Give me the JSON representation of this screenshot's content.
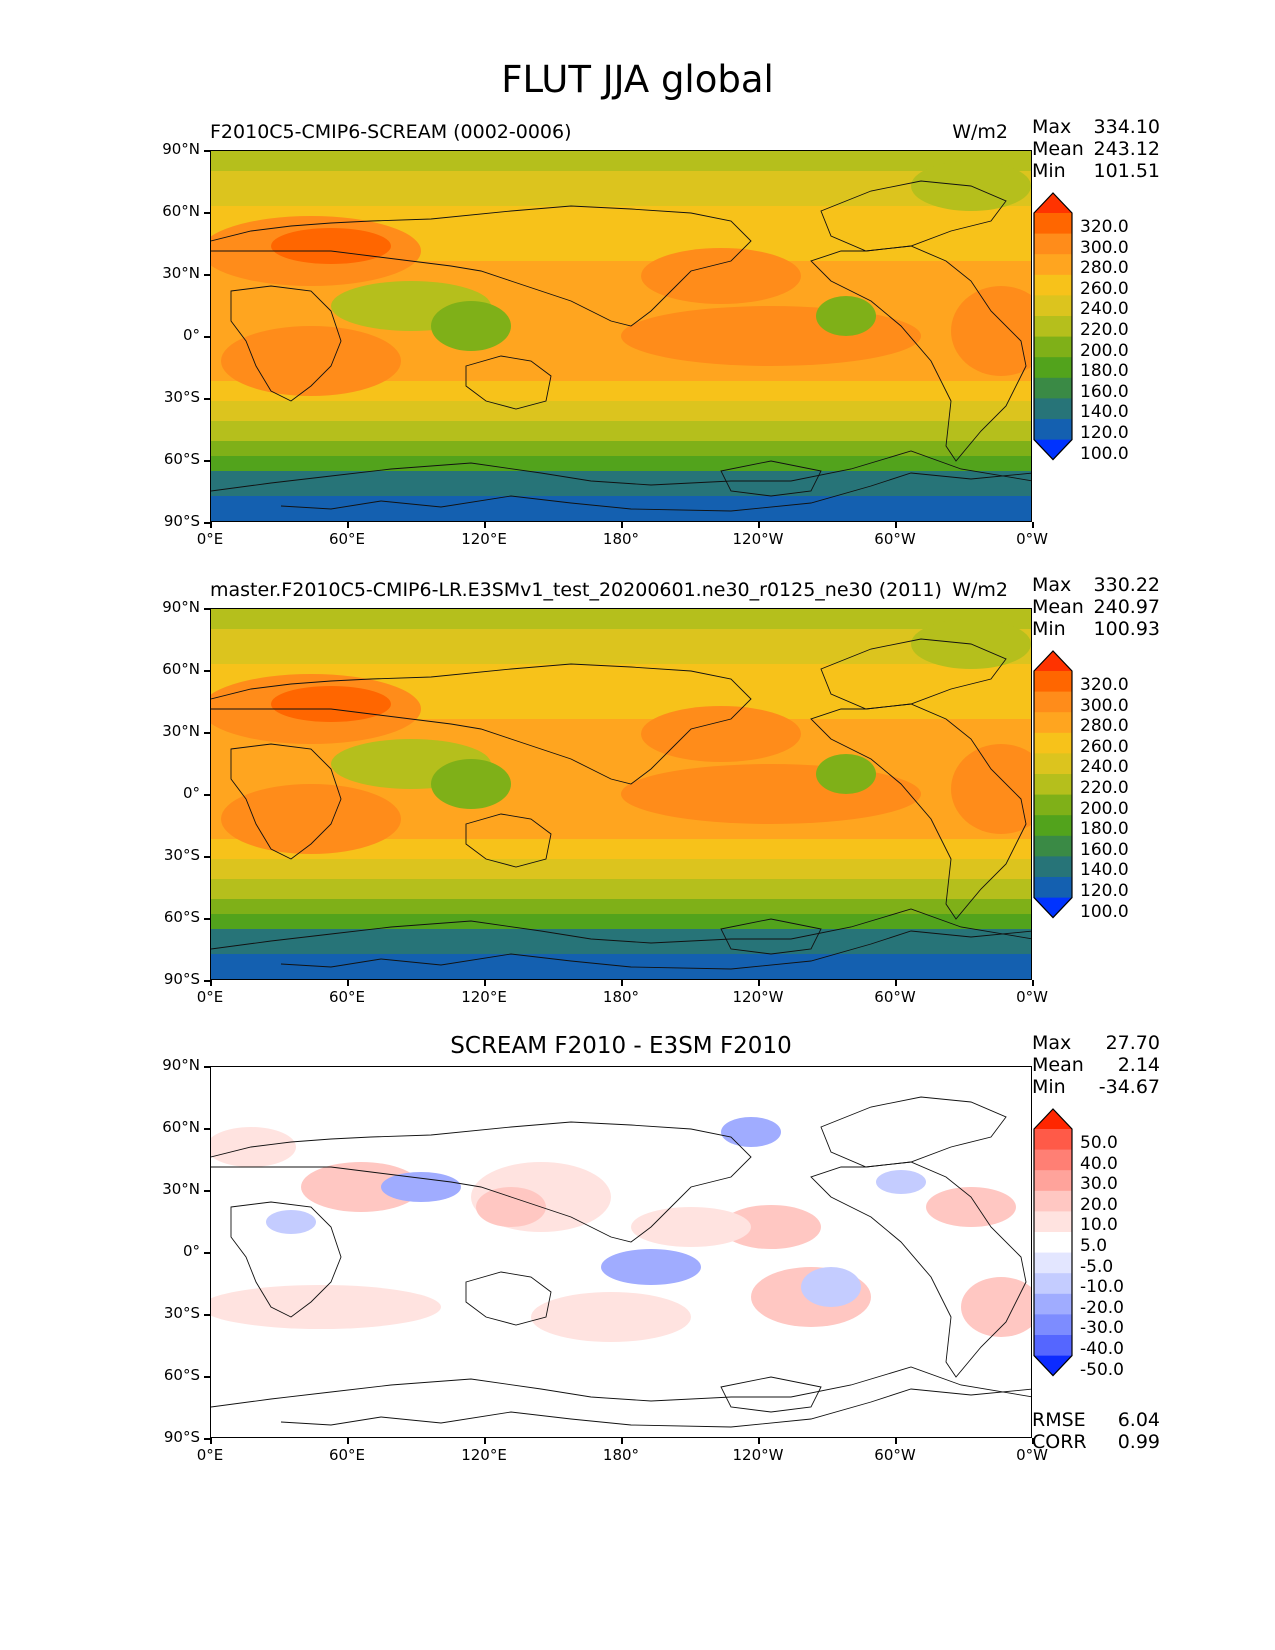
{
  "figure_title": "FLUT JJA global",
  "panels": [
    {
      "left_title": "F2010C5-CMIP6-SCREAM (0002-0006)",
      "units": "W/m2",
      "stats": {
        "Max": "334.10",
        "Mean": "243.12",
        "Min": "101.51"
      }
    },
    {
      "left_title": "master.F2010C5-CMIP6-LR.E3SMv1_test_20200601.ne30_r0125_ne30 (2011)",
      "units": "W/m2",
      "stats": {
        "Max": "330.22",
        "Mean": "240.97",
        "Min": "100.93"
      }
    },
    {
      "center_title": "SCREAM F2010 - E3SM F2010",
      "stats": {
        "Max": "27.70",
        "Mean": "2.14",
        "Min": "-34.67"
      },
      "metrics": {
        "RMSE": "6.04",
        "CORR": "0.99"
      }
    }
  ],
  "lat_ticks": [
    "90°N",
    "60°N",
    "30°N",
    "0°",
    "30°S",
    "60°S",
    "90°S"
  ],
  "lon_ticks": [
    "0°E",
    "60°E",
    "120°E",
    "180°",
    "120°W",
    "60°W",
    "0°W"
  ],
  "colorbar_main": {
    "labels": [
      "320.0",
      "300.0",
      "280.0",
      "260.0",
      "240.0",
      "220.0",
      "200.0",
      "180.0",
      "160.0",
      "140.0",
      "120.0",
      "100.0"
    ],
    "colors": [
      "#ff3300",
      "#ff6600",
      "#ff8c1a",
      "#ffa51f",
      "#f7c21a",
      "#dcc41e",
      "#b5bf1c",
      "#7fb018",
      "#52a31c",
      "#3a8a45",
      "#277478",
      "#1460b0",
      "#0033ff"
    ]
  },
  "colorbar_diff": {
    "labels": [
      "50.0",
      "40.0",
      "30.0",
      "20.0",
      "10.0",
      "5.0",
      "-5.0",
      "-10.0",
      "-20.0",
      "-30.0",
      "-40.0",
      "-50.0"
    ],
    "colors": [
      "#ff2600",
      "#ff5a48",
      "#ff7f74",
      "#ffa39b",
      "#ffc7c2",
      "#ffe3e0",
      "#ffffff",
      "#e3e6ff",
      "#c4ccff",
      "#a0acff",
      "#7d8cff",
      "#5566ff",
      "#0c2bff"
    ]
  }
}
